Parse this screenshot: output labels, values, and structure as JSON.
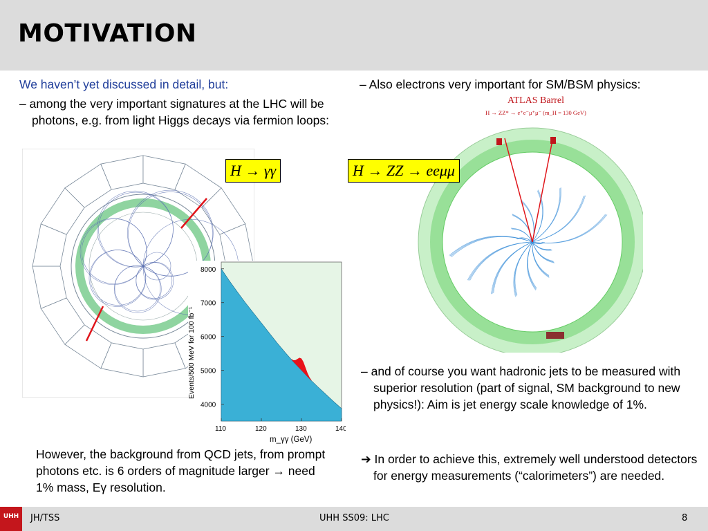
{
  "slide": {
    "title": "MOTIVATION",
    "left": {
      "intro": "We haven’t yet discussed in detail, but:",
      "bullet1": "– among the very important signatures at the LHC will be photons, e.g. from light Higgs decays via fermion loops:",
      "formula": "H → γγ",
      "bottom_text": "However, the background from QCD jets, from prompt photons etc. is 6 orders of magnitude larger → need 1% mass, Eγ resolution."
    },
    "right": {
      "bullet1": "– Also electrons very important for SM/BSM physics:",
      "formula": "H → ZZ → eeμμ",
      "event_title": "ATLAS Barrel",
      "event_subtitle": "H → ZZ* → e⁺e⁻μ⁺μ⁻ (m_H = 130 GeV)",
      "bullet2": "– and of course you want hadronic jets to be measured with superior resolution (part of signal, SM background to new physics!): Aim is jet energy scale knowledge of 1%.",
      "bullet3": "➔ In order to achieve this, extremely well understood detectors for energy measurements (“calorimeters”) are needed."
    },
    "footer": {
      "logo": "UHH",
      "left": "JH/TSS",
      "center": "UHH SS09: LHC",
      "page": "8"
    }
  },
  "chart_data": {
    "type": "area",
    "xlabel": "m_γγ (GeV)",
    "ylabel": "Events/500 MeV for 100 fb⁻¹",
    "xlim": [
      110,
      140
    ],
    "ylim": [
      3500,
      8200
    ],
    "x_ticks": [
      "110",
      "120",
      "130",
      "140"
    ],
    "y_ticks": [
      "4000",
      "5000",
      "6000",
      "7000",
      "8000"
    ],
    "x": [
      110,
      112,
      114,
      116,
      118,
      120,
      122,
      124,
      126,
      128,
      130,
      132,
      134,
      136,
      138,
      140
    ],
    "background": [
      8000,
      7650,
      7320,
      7000,
      6700,
      6400,
      6100,
      5800,
      5520,
      5250,
      5000,
      4750,
      4520,
      4300,
      4080,
      3870
    ],
    "signal_peak_center": 130,
    "signal_peak_height": 350,
    "colors": {
      "background": "#3ab0d6",
      "signal": "#e8121a",
      "panel": "#e6f5e6"
    }
  }
}
